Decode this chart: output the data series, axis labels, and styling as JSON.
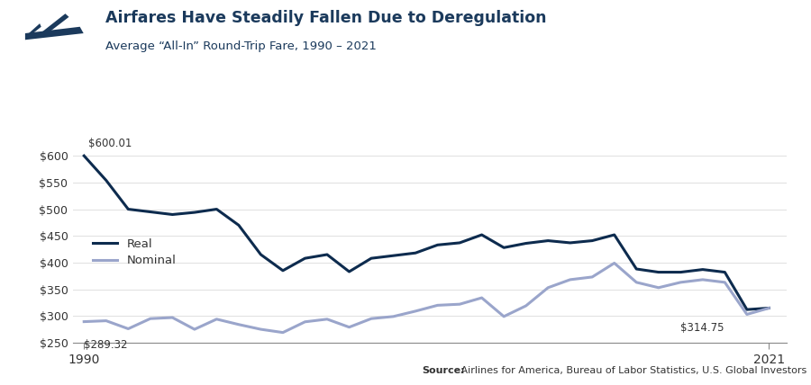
{
  "title": "Airfares Have Steadily Fallen Due to Deregulation",
  "subtitle": "Average “All-In” Round-Trip Fare, 1990 – 2021",
  "source_bold": "Source:",
  "source_rest": " Airlines for America, Bureau of Labor Statistics, U.S. Global Investors",
  "title_color": "#1b3a5c",
  "subtitle_color": "#1b3a5c",
  "real_color": "#0d2b4e",
  "nominal_color": "#9aa5cb",
  "background_color": "#ffffff",
  "years": [
    1990,
    1991,
    1992,
    1993,
    1994,
    1995,
    1996,
    1997,
    1998,
    1999,
    2000,
    2001,
    2002,
    2003,
    2004,
    2005,
    2006,
    2007,
    2008,
    2009,
    2010,
    2011,
    2012,
    2013,
    2014,
    2015,
    2016,
    2017,
    2018,
    2019,
    2020,
    2021
  ],
  "real": [
    600.01,
    554,
    500,
    495,
    490,
    494,
    500,
    470,
    415,
    385,
    408,
    415,
    383,
    408,
    413,
    418,
    433,
    437,
    452,
    428,
    436,
    441,
    437,
    441,
    452,
    388,
    382,
    382,
    387,
    382,
    312,
    314.75
  ],
  "nominal": [
    289.32,
    291,
    276,
    295,
    297,
    275,
    294,
    284,
    275,
    269,
    289,
    294,
    279,
    295,
    299,
    309,
    320,
    322,
    334,
    299,
    319,
    353,
    368,
    373,
    399,
    363,
    353,
    363,
    368,
    363,
    303,
    314.75
  ],
  "ylim": [
    250,
    625
  ],
  "yticks": [
    250,
    300,
    350,
    400,
    450,
    500,
    550,
    600
  ],
  "xlim_min": 1989.5,
  "xlim_max": 2021.8,
  "annotation_600": "$600.01",
  "annotation_289": "$289.32",
  "annotation_314": "$314.75",
  "legend_real": "Real",
  "legend_nominal": "Nominal",
  "linewidth": 2.2
}
